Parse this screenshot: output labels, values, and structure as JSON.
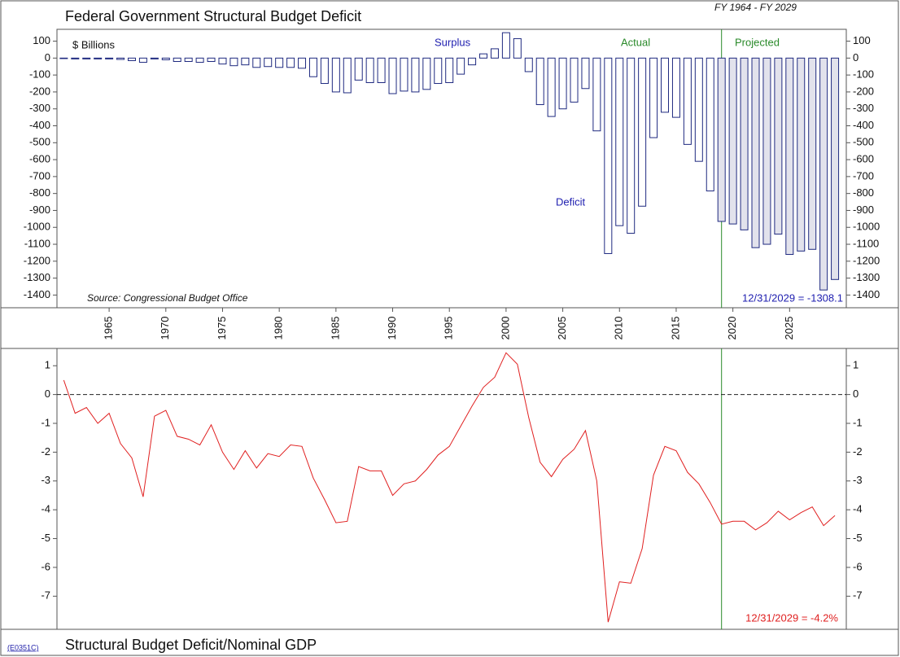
{
  "period": "FY 1964 - FY 2029",
  "footer_code": "(E0351C)",
  "chart_data": [
    {
      "type": "bar",
      "title": "Federal Government Structural Budget Deficit",
      "unit_label": "$ Billions",
      "source": "Source: Congressional Budget Office",
      "annotations": [
        "Surplus",
        "Deficit",
        "12/31/2029 = -1308.1"
      ],
      "x": [
        1961,
        1962,
        1963,
        1964,
        1965,
        1966,
        1967,
        1968,
        1969,
        1970,
        1971,
        1972,
        1973,
        1974,
        1975,
        1976,
        1977,
        1978,
        1979,
        1980,
        1981,
        1982,
        1983,
        1984,
        1985,
        1986,
        1987,
        1988,
        1989,
        1990,
        1991,
        1992,
        1993,
        1994,
        1995,
        1996,
        1997,
        1998,
        1999,
        2000,
        2001,
        2002,
        2003,
        2004,
        2005,
        2006,
        2007,
        2008,
        2009,
        2010,
        2011,
        2012,
        2013,
        2014,
        2015,
        2016,
        2017,
        2018,
        2019,
        2020,
        2021,
        2022,
        2023,
        2024,
        2025,
        2026,
        2027,
        2028,
        2029
      ],
      "xlim": [
        1960.4,
        2030
      ],
      "xticks": [
        1965,
        1970,
        1975,
        1980,
        1985,
        1990,
        1995,
        2000,
        2005,
        2010,
        2015,
        2020,
        2025
      ],
      "ylim": [
        -1475,
        170
      ],
      "yticks": [
        100,
        0,
        -100,
        -200,
        -300,
        -400,
        -500,
        -600,
        -700,
        -800,
        -900,
        -1000,
        -1100,
        -1200,
        -1300,
        -1400
      ],
      "series": [
        {
          "name": "Actual",
          "color": "#ffffff",
          "values": [
            -3,
            -5,
            -5,
            -5,
            -5,
            -8,
            -15,
            -25,
            -5,
            -10,
            -20,
            -20,
            -25,
            -20,
            -35,
            -45,
            -40,
            -55,
            -50,
            -55,
            -55,
            -60,
            -110,
            -150,
            -200,
            -205,
            -130,
            -145,
            -145,
            -210,
            -195,
            -200,
            -185,
            -150,
            -145,
            -95,
            -40,
            25,
            55,
            150,
            115,
            -80,
            -275,
            -345,
            -300,
            -260,
            -180,
            -430,
            -1155,
            -990,
            -1035,
            -875,
            -470,
            -320,
            -350,
            -510,
            -610,
            -785,
            null,
            null,
            null,
            null,
            null,
            null,
            null,
            null,
            null,
            null,
            null
          ]
        },
        {
          "name": "Projected",
          "color": "#e2e2ec",
          "values": [
            null,
            null,
            null,
            null,
            null,
            null,
            null,
            null,
            null,
            null,
            null,
            null,
            null,
            null,
            null,
            null,
            null,
            null,
            null,
            null,
            null,
            null,
            null,
            null,
            null,
            null,
            null,
            null,
            null,
            null,
            null,
            null,
            null,
            null,
            null,
            null,
            null,
            null,
            null,
            null,
            null,
            null,
            null,
            null,
            null,
            null,
            null,
            null,
            null,
            null,
            null,
            null,
            null,
            null,
            null,
            null,
            null,
            null,
            -965,
            -980,
            -1015,
            -1120,
            -1100,
            -1040,
            -1160,
            -1140,
            -1130,
            -1370,
            -1308.1
          ]
        }
      ]
    },
    {
      "type": "line",
      "title": "Structural Budget Deficit/Nominal GDP",
      "annotations": [
        "12/31/2029 = -4.2%"
      ],
      "color": "#e02020",
      "x": [
        1961,
        1962,
        1963,
        1964,
        1965,
        1966,
        1967,
        1968,
        1969,
        1970,
        1971,
        1972,
        1973,
        1974,
        1975,
        1976,
        1977,
        1978,
        1979,
        1980,
        1981,
        1982,
        1983,
        1984,
        1985,
        1986,
        1987,
        1988,
        1989,
        1990,
        1991,
        1992,
        1993,
        1994,
        1995,
        1996,
        1997,
        1998,
        1999,
        2000,
        2001,
        2002,
        2003,
        2004,
        2005,
        2006,
        2007,
        2008,
        2009,
        2010,
        2011,
        2012,
        2013,
        2014,
        2015,
        2016,
        2017,
        2018,
        2019,
        2020,
        2021,
        2022,
        2023,
        2024,
        2025,
        2026,
        2027,
        2028,
        2029
      ],
      "xlim": [
        1960.4,
        2030
      ],
      "ylim": [
        -8.15,
        1.6
      ],
      "yticks": [
        1,
        0,
        -1,
        -2,
        -3,
        -4,
        -5,
        -6,
        -7
      ],
      "values": [
        0.5,
        -0.65,
        -0.45,
        -1.0,
        -0.65,
        -1.7,
        -2.2,
        -3.55,
        -0.75,
        -0.55,
        -1.45,
        -1.55,
        -1.75,
        -1.05,
        -2.0,
        -2.6,
        -1.95,
        -2.55,
        -2.05,
        -2.15,
        -1.75,
        -1.8,
        -2.9,
        -3.65,
        -4.45,
        -4.4,
        -2.5,
        -2.65,
        -2.65,
        -3.5,
        -3.1,
        -3.0,
        -2.6,
        -2.1,
        -1.8,
        -1.1,
        -0.4,
        0.25,
        0.6,
        1.45,
        1.05,
        -0.8,
        -2.35,
        -2.85,
        -2.25,
        -1.9,
        -1.25,
        -3.0,
        -7.9,
        -6.5,
        -6.55,
        -5.35,
        -2.8,
        -1.8,
        -1.95,
        -2.7,
        -3.1,
        -3.75,
        -4.5,
        -4.4,
        -4.4,
        -4.7,
        -4.45,
        -4.05,
        -4.35,
        -4.1,
        -3.9,
        -4.55,
        -4.2
      ]
    }
  ]
}
